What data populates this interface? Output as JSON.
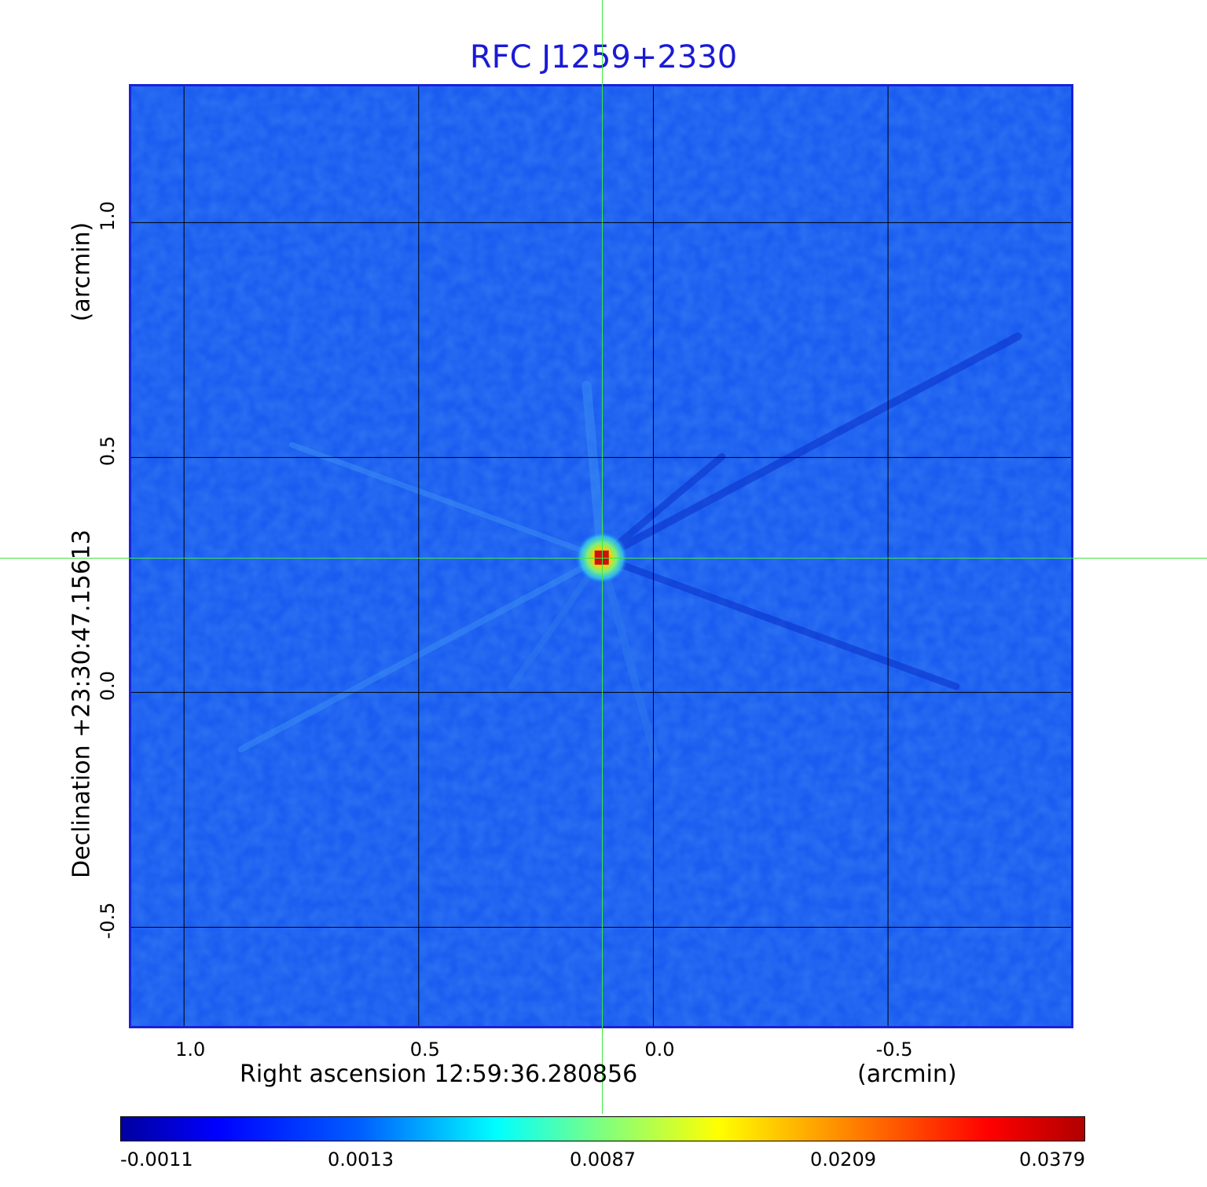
{
  "chart_data": {
    "type": "heatmap",
    "title": "RFC J1259+2330",
    "xlabel": "Right ascension  12:59:36.280856",
    "xlabel_unit": "(arcmin)",
    "ylabel": "Declination  +23:30:47.15613",
    "ylabel_unit": "(arcmin)",
    "x_ticks": [
      "1.0",
      "0.5",
      "0.0",
      "-0.5"
    ],
    "y_ticks": [
      "1.0",
      "0.5",
      "0.0",
      "-0.5"
    ],
    "x_tick_values": [
      1.0,
      0.5,
      0.0,
      -0.5
    ],
    "y_tick_values": [
      1.0,
      0.5,
      0.0,
      -0.5
    ],
    "xlim": [
      1.1125,
      -0.89
    ],
    "ylim": [
      -0.71,
      1.29
    ],
    "grid": true,
    "colormap": "jet",
    "colorbar_ticks": [
      "-0.0011",
      "0.0013",
      "0.0087",
      "0.0209",
      "0.0379"
    ],
    "colorbar_range": [
      -0.0011,
      0.0379
    ],
    "peak": {
      "x": 0.11,
      "y": 0.287
    },
    "crosshair": {
      "x": 0.11,
      "y": 0.287
    },
    "background_color": "#1a5cf0",
    "peak_color": "#d01010",
    "crosshair_color": "#3ee63e",
    "title_color": "#1a1ad6"
  }
}
